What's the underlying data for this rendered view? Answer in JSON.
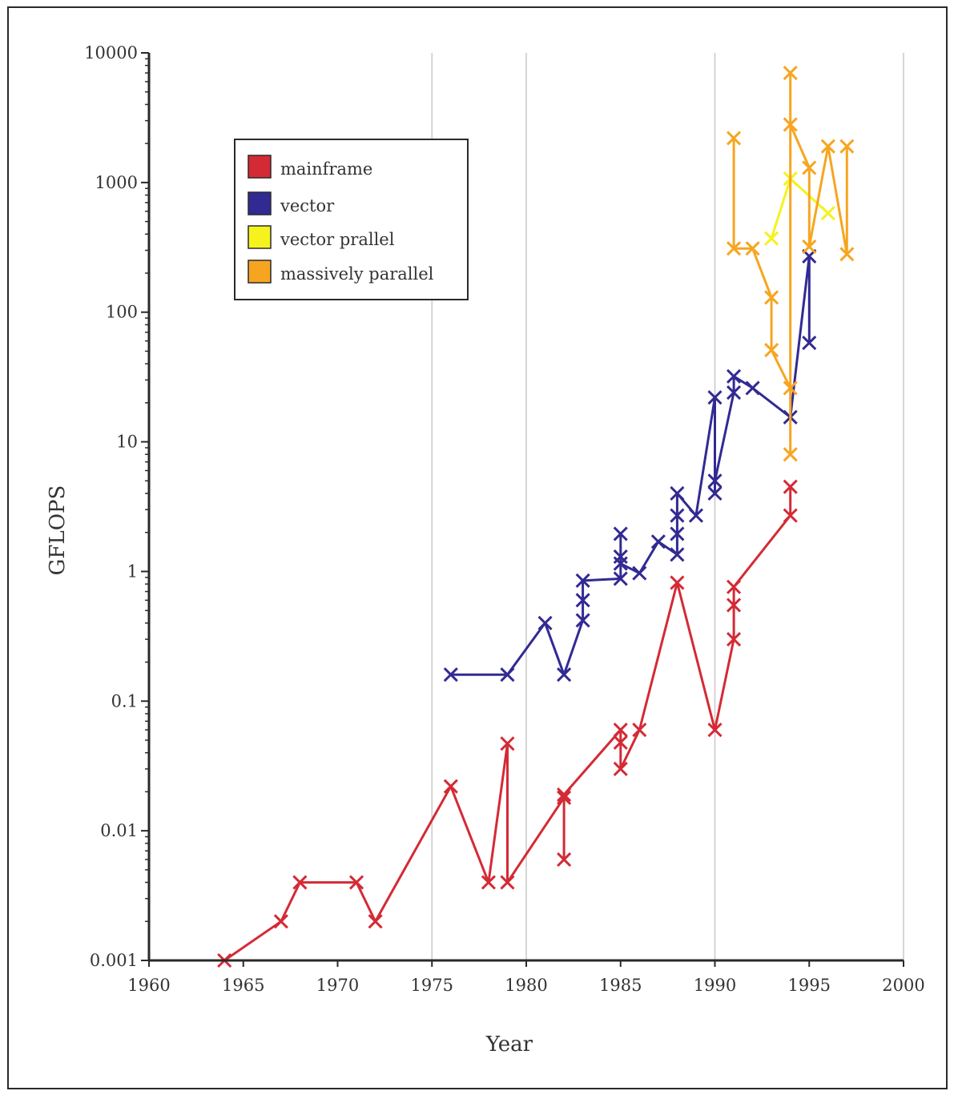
{
  "chart_data": {
    "type": "line",
    "xlabel": "Year",
    "ylabel": "GFLOPS",
    "y_scale": "log",
    "xlim": [
      1960,
      2000
    ],
    "ylim": [
      0.001,
      10000
    ],
    "x_ticks": [
      "1960",
      "1965",
      "1970",
      "1975",
      "1980",
      "1985",
      "1990",
      "1995",
      "2000"
    ],
    "y_ticks": [
      "0.001",
      "0.01",
      "0.1",
      "1",
      "10",
      "100",
      "1000",
      "10000"
    ],
    "x_grid_years": [
      1975,
      1980,
      1990,
      2000
    ],
    "marker": "x",
    "legend_position": "upper-left",
    "series": [
      {
        "name": "mainframe",
        "color": "#d42a35",
        "points": [
          [
            1964,
            0.001
          ],
          [
            1967,
            0.002
          ],
          [
            1968,
            0.004
          ],
          [
            1971,
            0.004
          ],
          [
            1972,
            0.002
          ],
          [
            1976,
            0.022
          ],
          [
            1978,
            0.004
          ],
          [
            1979,
            0.047
          ],
          [
            1979,
            0.004
          ],
          [
            1982,
            0.018
          ],
          [
            1982,
            0.006
          ],
          [
            1982,
            0.019
          ],
          [
            1985,
            0.06
          ],
          [
            1985,
            0.048
          ],
          [
            1985,
            0.03
          ],
          [
            1986,
            0.06
          ],
          [
            1988,
            0.82
          ],
          [
            1990,
            0.06
          ],
          [
            1991,
            0.3
          ],
          [
            1991,
            0.55
          ],
          [
            1991,
            0.76
          ],
          [
            1994,
            2.7
          ],
          [
            1994,
            4.5
          ]
        ]
      },
      {
        "name": "vector",
        "color": "#322a93",
        "points": [
          [
            1976,
            0.16
          ],
          [
            1979,
            0.16
          ],
          [
            1981,
            0.4
          ],
          [
            1982,
            0.16
          ],
          [
            1983,
            0.42
          ],
          [
            1983,
            0.6
          ],
          [
            1983,
            0.85
          ],
          [
            1985,
            0.88
          ],
          [
            1985,
            1.3
          ],
          [
            1985,
            1.95
          ],
          [
            1985,
            1.15
          ],
          [
            1986,
            0.97
          ],
          [
            1987,
            1.7
          ],
          [
            1988,
            1.35
          ],
          [
            1988,
            1.95
          ],
          [
            1988,
            2.7
          ],
          [
            1988,
            4.0
          ],
          [
            1989,
            2.7
          ],
          [
            1990,
            22
          ],
          [
            1990,
            4.0
          ],
          [
            1990,
            5.0
          ],
          [
            1991,
            24
          ],
          [
            1991,
            32
          ],
          [
            1992,
            26
          ],
          [
            1994,
            15.5
          ],
          [
            1995,
            270
          ],
          [
            1995,
            58
          ]
        ]
      },
      {
        "name": "vector prallel",
        "color": "#f5f21e",
        "points": [
          [
            1993,
            370
          ],
          [
            1994,
            1070
          ],
          [
            1996,
            580
          ]
        ]
      },
      {
        "name": "massively parallel",
        "color": "#f7a520",
        "points": [
          [
            1991,
            2200
          ],
          [
            1991,
            310
          ],
          [
            1992,
            310
          ],
          [
            1993,
            130
          ],
          [
            1993,
            51
          ],
          [
            1994,
            26
          ],
          [
            1994,
            8
          ],
          [
            1994,
            7000
          ],
          [
            1994,
            2800
          ],
          [
            1995,
            1300
          ],
          [
            1995,
            320
          ],
          [
            1996,
            1900
          ],
          [
            1997,
            280
          ],
          [
            1997,
            1900
          ]
        ]
      }
    ]
  }
}
